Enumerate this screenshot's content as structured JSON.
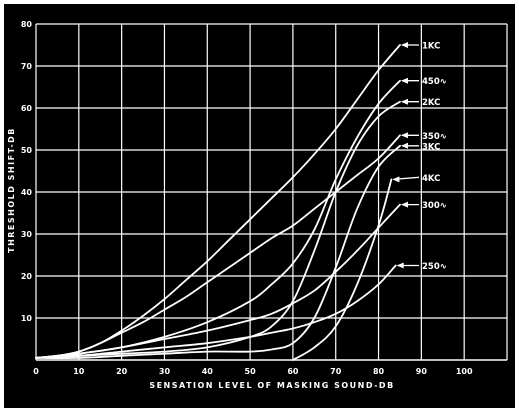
{
  "chart_data": {
    "type": "line",
    "title": "",
    "xlabel": "SENSATION LEVEL OF MASKING SOUND-DB",
    "ylabel": "THRESHOLD SHIFT-DB",
    "xlim": [
      0,
      110
    ],
    "ylim": [
      0,
      80
    ],
    "x_ticks": [
      "0",
      "10",
      "20",
      "30",
      "40",
      "50",
      "60",
      "70",
      "80",
      "90",
      "100"
    ],
    "y_ticks": [
      "10",
      "20",
      "30",
      "40",
      "50",
      "60",
      "70",
      "80"
    ],
    "grid": true,
    "colors": {
      "background": "#000000",
      "lines": "#ffffff"
    },
    "series": [
      {
        "name": "1KC",
        "label_y": 75,
        "points": [
          [
            0,
            0.5
          ],
          [
            5,
            1
          ],
          [
            10,
            2
          ],
          [
            15,
            4
          ],
          [
            20,
            7
          ],
          [
            25,
            10.5
          ],
          [
            30,
            14.5
          ],
          [
            35,
            19
          ],
          [
            40,
            23.5
          ],
          [
            45,
            28.5
          ],
          [
            50,
            33.5
          ],
          [
            55,
            38.5
          ],
          [
            60,
            43.5
          ],
          [
            65,
            49
          ],
          [
            70,
            55
          ],
          [
            75,
            62
          ],
          [
            80,
            69
          ],
          [
            85,
            75
          ]
        ]
      },
      {
        "name": "450∿",
        "label_y": 66.5,
        "points": [
          [
            0,
            0.5
          ],
          [
            10,
            1.5
          ],
          [
            20,
            3
          ],
          [
            30,
            5.5
          ],
          [
            40,
            9
          ],
          [
            50,
            14
          ],
          [
            55,
            18
          ],
          [
            60,
            23
          ],
          [
            65,
            31
          ],
          [
            70,
            43
          ],
          [
            75,
            53
          ],
          [
            80,
            61
          ],
          [
            85,
            66.5
          ]
        ]
      },
      {
        "name": "2KC",
        "label_y": 61.5,
        "points": [
          [
            0,
            0.5
          ],
          [
            10,
            1
          ],
          [
            20,
            1.5
          ],
          [
            30,
            2
          ],
          [
            40,
            3
          ],
          [
            50,
            5.5
          ],
          [
            55,
            8
          ],
          [
            60,
            14
          ],
          [
            65,
            26
          ],
          [
            70,
            40
          ],
          [
            75,
            51
          ],
          [
            80,
            58
          ],
          [
            85,
            61.5
          ]
        ]
      },
      {
        "name": "350∿",
        "label_y": 53.5,
        "points": [
          [
            0,
            0.5
          ],
          [
            5,
            1
          ],
          [
            10,
            2
          ],
          [
            15,
            4
          ],
          [
            20,
            6.5
          ],
          [
            25,
            9
          ],
          [
            30,
            12
          ],
          [
            35,
            15
          ],
          [
            40,
            18.5
          ],
          [
            45,
            22
          ],
          [
            50,
            25.5
          ],
          [
            55,
            29
          ],
          [
            60,
            32
          ],
          [
            65,
            36
          ],
          [
            70,
            40
          ],
          [
            75,
            44
          ],
          [
            80,
            48
          ],
          [
            85,
            53.5
          ]
        ]
      },
      {
        "name": "3KC",
        "label_y": 51,
        "points": [
          [
            0,
            0.5
          ],
          [
            10,
            0.5
          ],
          [
            20,
            1
          ],
          [
            30,
            1.5
          ],
          [
            40,
            2
          ],
          [
            50,
            2
          ],
          [
            55,
            2.5
          ],
          [
            60,
            4
          ],
          [
            65,
            10
          ],
          [
            70,
            22
          ],
          [
            75,
            36
          ],
          [
            80,
            46
          ],
          [
            85,
            51
          ]
        ]
      },
      {
        "name": "4KC",
        "label_y": 43.5,
        "points": [
          [
            60,
            0
          ],
          [
            65,
            3
          ],
          [
            70,
            8
          ],
          [
            75,
            18
          ],
          [
            80,
            32
          ],
          [
            83,
            43
          ]
        ]
      },
      {
        "name": "300∿",
        "label_y": 37,
        "points": [
          [
            0,
            0.5
          ],
          [
            10,
            1.5
          ],
          [
            20,
            3
          ],
          [
            30,
            5
          ],
          [
            40,
            7
          ],
          [
            50,
            9.5
          ],
          [
            55,
            11
          ],
          [
            60,
            13.5
          ],
          [
            65,
            16.5
          ],
          [
            70,
            21
          ],
          [
            75,
            26
          ],
          [
            80,
            31.5
          ],
          [
            85,
            37
          ]
        ]
      },
      {
        "name": "250∿",
        "label_y": 22.5,
        "points": [
          [
            0,
            0.5
          ],
          [
            10,
            1
          ],
          [
            20,
            2
          ],
          [
            30,
            3
          ],
          [
            40,
            4
          ],
          [
            50,
            5.5
          ],
          [
            55,
            6.5
          ],
          [
            60,
            7.5
          ],
          [
            65,
            9
          ],
          [
            70,
            11
          ],
          [
            75,
            14
          ],
          [
            80,
            18
          ],
          [
            84,
            22.5
          ]
        ]
      }
    ]
  }
}
